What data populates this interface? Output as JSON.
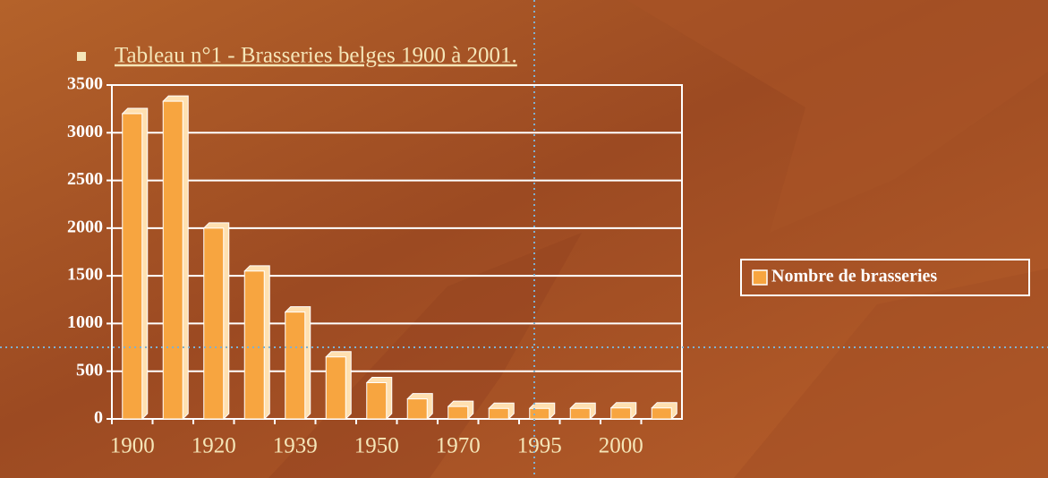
{
  "chart_data": {
    "type": "bar",
    "title": "Tableau n°1 - Brasseries belges 1900 à 2001.",
    "categories": [
      "1900",
      null,
      "1920",
      null,
      "1939",
      null,
      "1950",
      null,
      "1970",
      null,
      "1995",
      null,
      "2000",
      null
    ],
    "series": [
      {
        "name": "Nombre de brasseries",
        "color": "#f7a540",
        "values": [
          3200,
          3330,
          2000,
          1550,
          1120,
          650,
          380,
          210,
          130,
          110,
          110,
          110,
          115,
          115
        ]
      }
    ],
    "ylim": [
      0,
      3500
    ],
    "yticks": [
      0,
      500,
      1000,
      1500,
      2000,
      2500,
      3000,
      3500
    ],
    "grid": true,
    "legend": "right"
  }
}
